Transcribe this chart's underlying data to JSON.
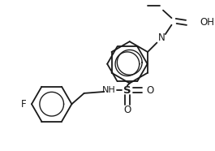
{
  "bg_color": "#ffffff",
  "line_color": "#1a1a1a",
  "lw": 1.3,
  "figsize": [
    2.65,
    1.86
  ],
  "dpi": 100,
  "xlim": [
    0,
    265
  ],
  "ylim": [
    0,
    186
  ]
}
